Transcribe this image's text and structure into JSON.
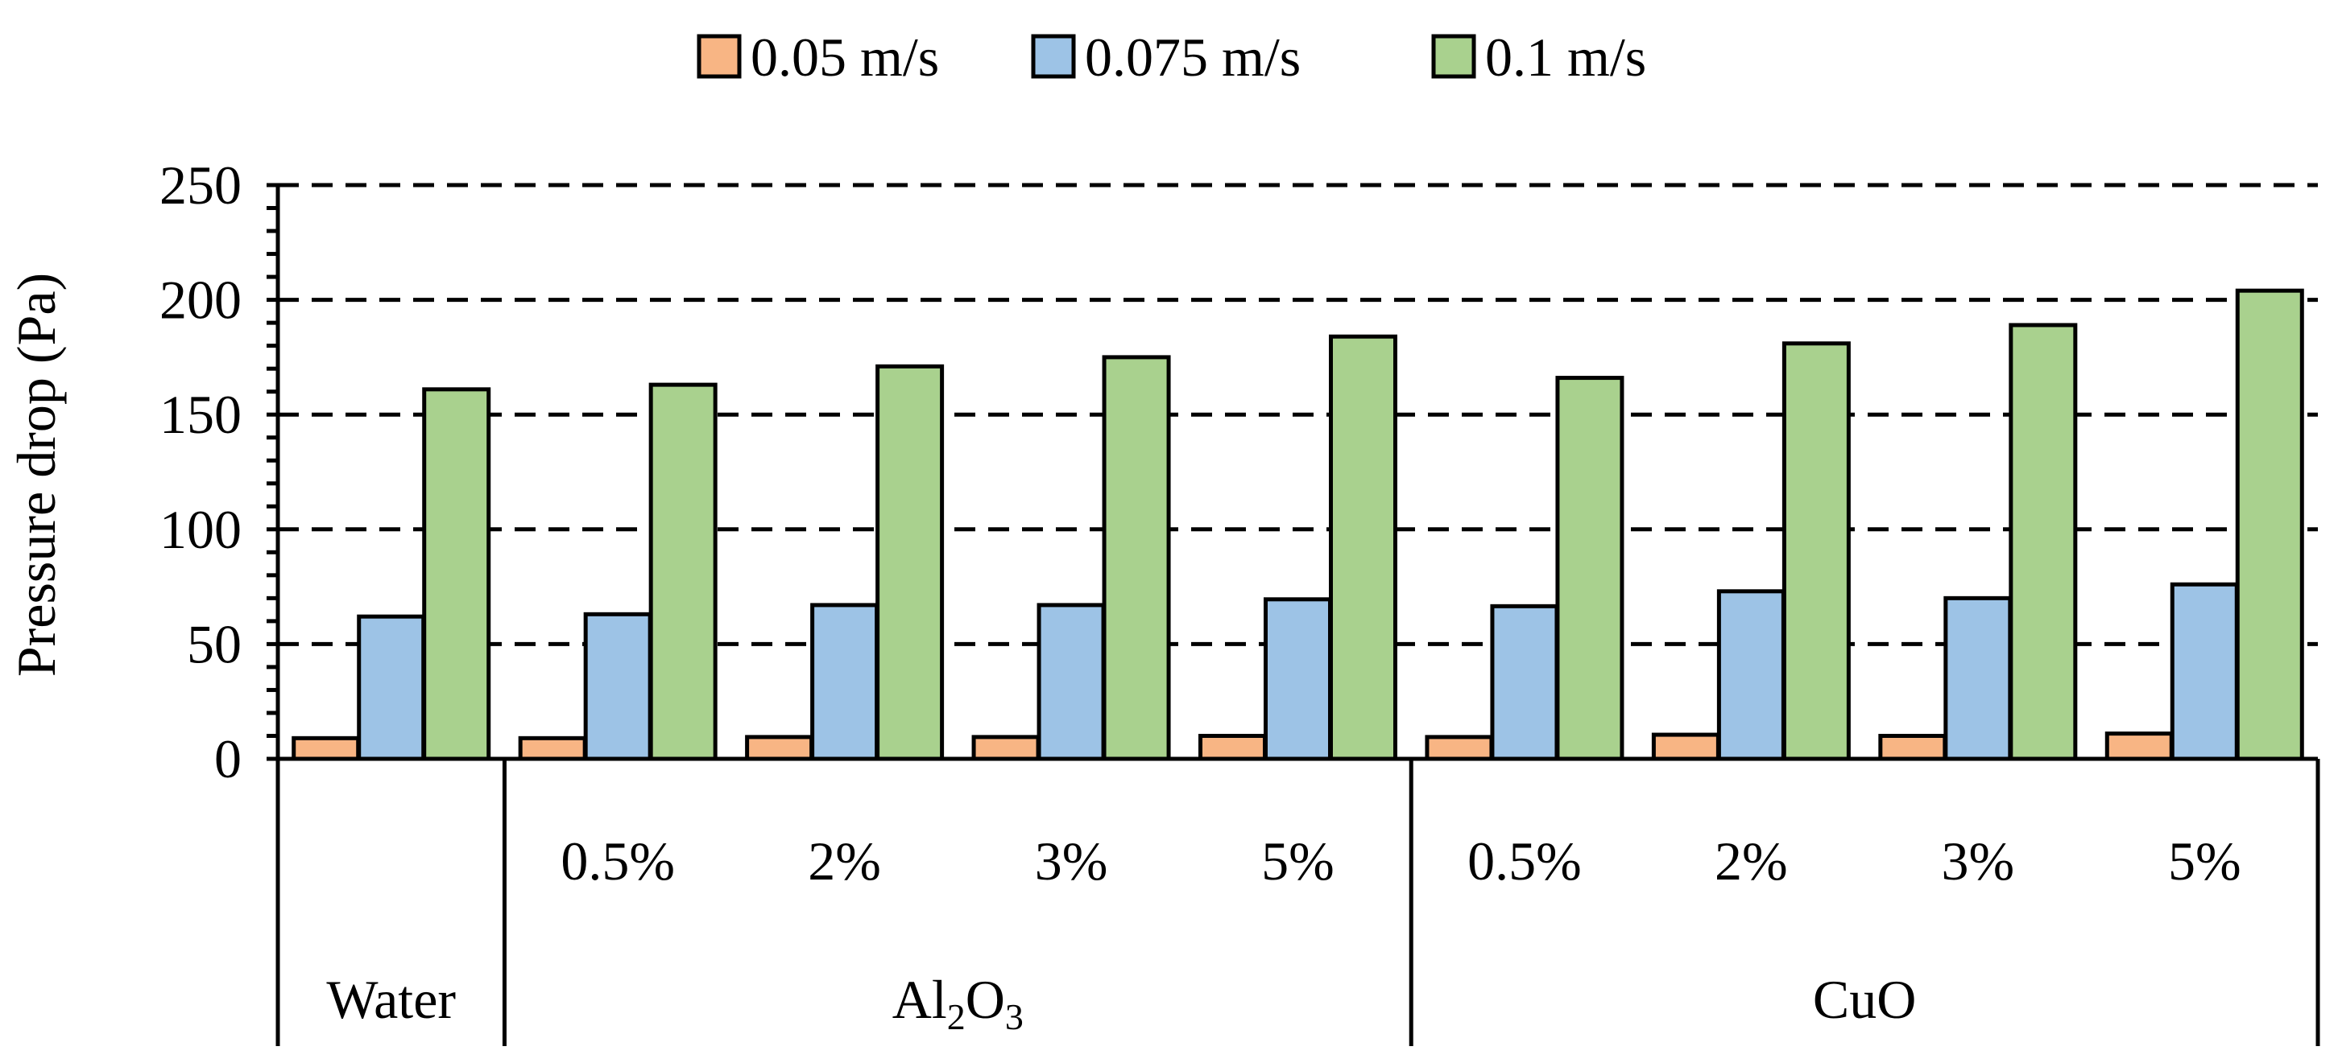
{
  "chart_data": {
    "type": "bar",
    "title": "",
    "xlabel": "",
    "ylabel": "Pressure drop (Pa)",
    "ylim": [
      0,
      250
    ],
    "yticks": [
      0,
      50,
      100,
      150,
      200,
      250
    ],
    "grid": true,
    "legend_position": "top",
    "categories": [
      "",
      "0.5%",
      "2%",
      "3%",
      "5%",
      "0.5%",
      "2%",
      "3%",
      "5%"
    ],
    "groups": [
      {
        "label": "Water",
        "size": 1
      },
      {
        "label": "Al2O3",
        "base": "Al",
        "sub1": "2",
        "mid": "O",
        "sub2": "3",
        "size": 4
      },
      {
        "label": "CuO",
        "size": 4
      }
    ],
    "series": [
      {
        "name": "0.05 m/s",
        "color": "#f8b584",
        "values": [
          9,
          9,
          9.5,
          9.5,
          10,
          9.5,
          10.5,
          10,
          11
        ]
      },
      {
        "name": "0.075 m/s",
        "color": "#9dc3e6",
        "values": [
          62,
          63,
          67,
          67,
          69.5,
          66.5,
          73,
          70,
          76
        ]
      },
      {
        "name": "0.1 m/s",
        "color": "#a9d18e",
        "values": [
          161,
          163,
          171,
          175,
          184,
          166,
          181,
          189,
          204
        ]
      }
    ]
  }
}
